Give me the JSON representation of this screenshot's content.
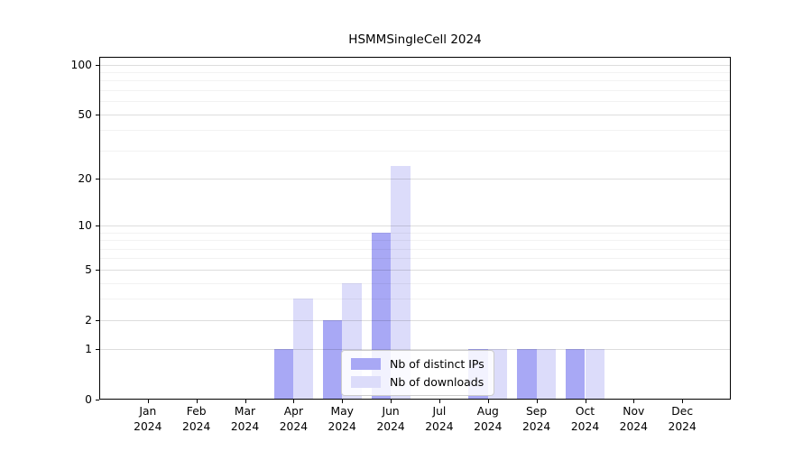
{
  "title": "HSMMSingleCell 2024",
  "chart_data": {
    "type": "bar",
    "title": "HSMMSingleCell 2024",
    "categories": [
      "Jan",
      "Feb",
      "Mar",
      "Apr",
      "May",
      "Jun",
      "Jul",
      "Aug",
      "Sep",
      "Oct",
      "Nov",
      "Dec"
    ],
    "year": "2024",
    "series": [
      {
        "name": "Nb of distinct IPs",
        "color": "#a8a8f5",
        "values": [
          0,
          0,
          0,
          1,
          2,
          9,
          0,
          1,
          1,
          1,
          0,
          0
        ]
      },
      {
        "name": "Nb of downloads",
        "color": "#dcdcfa",
        "values": [
          0,
          0,
          0,
          3,
          4,
          24,
          0,
          1,
          1,
          1,
          0,
          0
        ]
      }
    ],
    "xlabel": "",
    "ylabel": "",
    "yscale": "log1p",
    "ylim": [
      0,
      100
    ],
    "yticks": [
      0,
      1,
      2,
      5,
      10,
      20,
      50,
      100
    ],
    "minor_gridlines": [
      3,
      4,
      6,
      7,
      8,
      9,
      30,
      40,
      60,
      70,
      80,
      90
    ],
    "grid": true,
    "legend_position": "lower center inside plot"
  }
}
